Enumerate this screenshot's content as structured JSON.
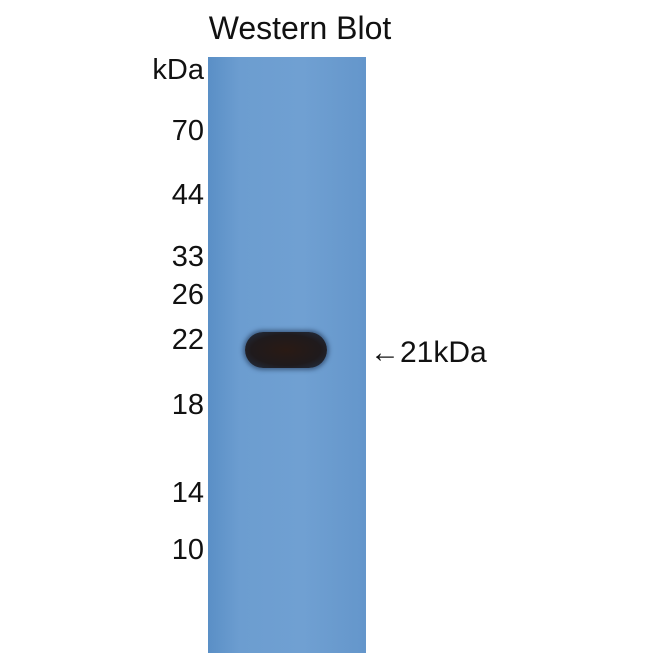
{
  "title": "Western Blot",
  "unit_label": "kDa",
  "markers": [
    "70",
    "44",
    "33",
    "26",
    "22",
    "18",
    "14",
    "10"
  ],
  "band_annotation": "←21kDa",
  "colors": {
    "membrane": "#6c9dd0",
    "band": "#1f1a1c"
  }
}
